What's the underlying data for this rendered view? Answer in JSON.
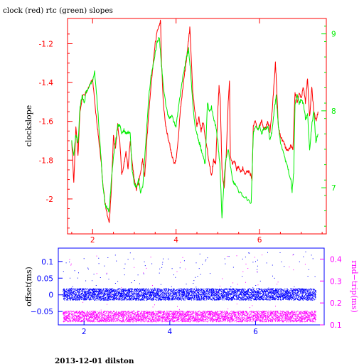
{
  "title": "clock (red) rtc (green) slopes",
  "footer": "2013-12-01 dilston",
  "colors": {
    "clock": "#ff0000",
    "rtc": "#00ee00",
    "offset": "#0000ff",
    "rndtrip": "#ff00ff",
    "axis_top": "#ff0000",
    "axis_bottom": "#0000ff"
  },
  "chart_data": [
    {
      "type": "line",
      "title": "clock (red) rtc (green) slopes",
      "ylabel": "clockslope",
      "y2label": "",
      "xlim": [
        1.4,
        7.6
      ],
      "ylim": [
        -2.18,
        -1.07
      ],
      "y2lim": [
        6.4,
        9.2
      ],
      "xticks": [
        "2",
        "4",
        "6"
      ],
      "yticks": [
        "-1.2",
        "-1.4",
        "-1.6",
        "-1.8",
        "-2"
      ],
      "y2ticks": [
        "9",
        "8",
        "7"
      ],
      "grid": false,
      "series": [
        {
          "name": "clock",
          "axis": "left",
          "points": [
            [
              1.5,
              -1.7
            ],
            [
              1.55,
              -1.92
            ],
            [
              1.6,
              -1.62
            ],
            [
              1.65,
              -1.78
            ],
            [
              1.7,
              -1.55
            ],
            [
              1.75,
              -1.48
            ],
            [
              1.85,
              -1.45
            ],
            [
              1.95,
              -1.4
            ],
            [
              2.0,
              -1.38
            ],
            [
              2.05,
              -1.5
            ],
            [
              2.1,
              -1.6
            ],
            [
              2.15,
              -1.7
            ],
            [
              2.2,
              -1.8
            ],
            [
              2.25,
              -1.93
            ],
            [
              2.3,
              -2.02
            ],
            [
              2.35,
              -2.08
            ],
            [
              2.4,
              -2.12
            ],
            [
              2.45,
              -1.95
            ],
            [
              2.5,
              -1.68
            ],
            [
              2.55,
              -1.74
            ],
            [
              2.6,
              -1.62
            ],
            [
              2.65,
              -1.7
            ],
            [
              2.7,
              -1.88
            ],
            [
              2.75,
              -1.82
            ],
            [
              2.8,
              -1.76
            ],
            [
              2.85,
              -1.84
            ],
            [
              2.9,
              -1.7
            ],
            [
              2.95,
              -1.82
            ],
            [
              3.0,
              -1.9
            ],
            [
              3.05,
              -1.95
            ],
            [
              3.1,
              -1.92
            ],
            [
              3.15,
              -1.86
            ],
            [
              3.2,
              -1.8
            ],
            [
              3.25,
              -1.88
            ],
            [
              3.3,
              -1.7
            ],
            [
              3.35,
              -1.55
            ],
            [
              3.4,
              -1.42
            ],
            [
              3.45,
              -1.3
            ],
            [
              3.5,
              -1.2
            ],
            [
              3.55,
              -1.14
            ],
            [
              3.6,
              -1.1
            ],
            [
              3.63,
              -1.08
            ],
            [
              3.65,
              -1.3
            ],
            [
              3.7,
              -1.52
            ],
            [
              3.75,
              -1.62
            ],
            [
              3.8,
              -1.68
            ],
            [
              3.85,
              -1.72
            ],
            [
              3.9,
              -1.78
            ],
            [
              3.95,
              -1.82
            ],
            [
              4.0,
              -1.8
            ],
            [
              4.05,
              -1.7
            ],
            [
              4.1,
              -1.55
            ],
            [
              4.15,
              -1.45
            ],
            [
              4.2,
              -1.36
            ],
            [
              4.25,
              -1.28
            ],
            [
              4.3,
              -1.18
            ],
            [
              4.33,
              -1.12
            ],
            [
              4.36,
              -1.25
            ],
            [
              4.4,
              -1.45
            ],
            [
              4.45,
              -1.55
            ],
            [
              4.5,
              -1.62
            ],
            [
              4.55,
              -1.58
            ],
            [
              4.6,
              -1.65
            ],
            [
              4.65,
              -1.6
            ],
            [
              4.7,
              -1.68
            ],
            [
              4.75,
              -1.75
            ],
            [
              4.8,
              -1.82
            ],
            [
              4.85,
              -1.88
            ],
            [
              4.9,
              -1.8
            ],
            [
              4.95,
              -1.82
            ],
            [
              5.0,
              -1.55
            ],
            [
              5.03,
              -1.42
            ],
            [
              5.06,
              -1.5
            ],
            [
              5.1,
              -1.85
            ],
            [
              5.15,
              -1.95
            ],
            [
              5.2,
              -1.78
            ],
            [
              5.25,
              -1.5
            ],
            [
              5.28,
              -1.4
            ],
            [
              5.3,
              -1.78
            ],
            [
              5.35,
              -1.82
            ],
            [
              5.4,
              -1.8
            ],
            [
              5.45,
              -1.85
            ],
            [
              5.5,
              -1.83
            ],
            [
              5.55,
              -1.86
            ],
            [
              5.6,
              -1.84
            ],
            [
              5.65,
              -1.87
            ],
            [
              5.7,
              -1.86
            ],
            [
              5.75,
              -1.86
            ],
            [
              5.8,
              -1.88
            ],
            [
              5.82,
              -1.9
            ],
            [
              5.85,
              -1.62
            ],
            [
              5.9,
              -1.6
            ],
            [
              5.95,
              -1.64
            ],
            [
              6.0,
              -1.62
            ],
            [
              6.05,
              -1.6
            ],
            [
              6.1,
              -1.64
            ],
            [
              6.15,
              -1.63
            ],
            [
              6.2,
              -1.6
            ],
            [
              6.25,
              -1.65
            ],
            [
              6.3,
              -1.55
            ],
            [
              6.35,
              -1.4
            ],
            [
              6.38,
              -1.3
            ],
            [
              6.4,
              -1.38
            ],
            [
              6.45,
              -1.62
            ],
            [
              6.5,
              -1.68
            ],
            [
              6.55,
              -1.7
            ],
            [
              6.6,
              -1.72
            ],
            [
              6.65,
              -1.75
            ],
            [
              6.7,
              -1.75
            ],
            [
              6.75,
              -1.72
            ],
            [
              6.8,
              -1.75
            ],
            [
              6.85,
              -1.45
            ],
            [
              6.9,
              -1.5
            ],
            [
              6.95,
              -1.46
            ],
            [
              7.0,
              -1.48
            ],
            [
              7.05,
              -1.42
            ],
            [
              7.1,
              -1.5
            ],
            [
              7.15,
              -1.38
            ],
            [
              7.2,
              -1.58
            ],
            [
              7.25,
              -1.42
            ],
            [
              7.3,
              -1.55
            ],
            [
              7.35,
              -1.6
            ],
            [
              7.4,
              -1.55
            ]
          ]
        },
        {
          "name": "rtc",
          "axis": "right",
          "points": [
            [
              1.5,
              7.6
            ],
            [
              1.55,
              7.42
            ],
            [
              1.6,
              7.7
            ],
            [
              1.65,
              7.58
            ],
            [
              1.7,
              8.05
            ],
            [
              1.75,
              8.2
            ],
            [
              1.8,
              8.1
            ],
            [
              1.85,
              8.25
            ],
            [
              1.9,
              8.3
            ],
            [
              1.95,
              8.35
            ],
            [
              2.0,
              8.4
            ],
            [
              2.05,
              8.5
            ],
            [
              2.1,
              8.2
            ],
            [
              2.15,
              7.8
            ],
            [
              2.2,
              7.4
            ],
            [
              2.25,
              7.0
            ],
            [
              2.3,
              6.8
            ],
            [
              2.35,
              6.72
            ],
            [
              2.4,
              6.7
            ],
            [
              2.45,
              7.1
            ],
            [
              2.5,
              7.4
            ],
            [
              2.55,
              7.6
            ],
            [
              2.6,
              7.8
            ],
            [
              2.65,
              7.82
            ],
            [
              2.7,
              7.7
            ],
            [
              2.75,
              7.75
            ],
            [
              2.8,
              7.7
            ],
            [
              2.85,
              7.72
            ],
            [
              2.9,
              7.7
            ],
            [
              2.95,
              7.2
            ],
            [
              3.0,
              7.05
            ],
            [
              3.05,
              7.0
            ],
            [
              3.1,
              7.1
            ],
            [
              3.15,
              6.95
            ],
            [
              3.2,
              7.0
            ],
            [
              3.25,
              7.4
            ],
            [
              3.3,
              7.8
            ],
            [
              3.35,
              8.2
            ],
            [
              3.4,
              8.45
            ],
            [
              3.45,
              8.6
            ],
            [
              3.5,
              8.75
            ],
            [
              3.55,
              8.9
            ],
            [
              3.6,
              8.95
            ],
            [
              3.65,
              8.6
            ],
            [
              3.7,
              8.3
            ],
            [
              3.75,
              8.1
            ],
            [
              3.8,
              7.95
            ],
            [
              3.85,
              7.9
            ],
            [
              3.9,
              7.95
            ],
            [
              3.95,
              7.85
            ],
            [
              4.0,
              7.8
            ],
            [
              4.05,
              8.0
            ],
            [
              4.1,
              8.2
            ],
            [
              4.15,
              8.4
            ],
            [
              4.2,
              8.55
            ],
            [
              4.25,
              8.7
            ],
            [
              4.3,
              8.8
            ],
            [
              4.35,
              8.5
            ],
            [
              4.4,
              8.1
            ],
            [
              4.45,
              7.8
            ],
            [
              4.5,
              7.7
            ],
            [
              4.55,
              7.6
            ],
            [
              4.6,
              7.5
            ],
            [
              4.65,
              7.4
            ],
            [
              4.7,
              7.3
            ],
            [
              4.75,
              8.1
            ],
            [
              4.8,
              8.0
            ],
            [
              4.85,
              8.05
            ],
            [
              4.9,
              7.9
            ],
            [
              4.95,
              7.8
            ],
            [
              5.0,
              7.6
            ],
            [
              5.05,
              7.3
            ],
            [
              5.1,
              6.6
            ],
            [
              5.15,
              7.1
            ],
            [
              5.2,
              7.4
            ],
            [
              5.25,
              7.5
            ],
            [
              5.3,
              7.3
            ],
            [
              5.35,
              7.1
            ],
            [
              5.4,
              7.05
            ],
            [
              5.5,
              6.95
            ],
            [
              5.6,
              6.9
            ],
            [
              5.7,
              6.85
            ],
            [
              5.8,
              6.8
            ],
            [
              5.85,
              7.7
            ],
            [
              5.9,
              7.8
            ],
            [
              5.95,
              7.75
            ],
            [
              6.0,
              7.8
            ],
            [
              6.05,
              7.7
            ],
            [
              6.1,
              7.78
            ],
            [
              6.15,
              7.75
            ],
            [
              6.2,
              7.8
            ],
            [
              6.25,
              7.6
            ],
            [
              6.3,
              7.75
            ],
            [
              6.35,
              8.0
            ],
            [
              6.4,
              8.2
            ],
            [
              6.45,
              7.8
            ],
            [
              6.5,
              7.6
            ],
            [
              6.55,
              7.5
            ],
            [
              6.6,
              7.4
            ],
            [
              6.65,
              7.3
            ],
            [
              6.7,
              7.2
            ],
            [
              6.75,
              7.1
            ],
            [
              6.78,
              6.95
            ],
            [
              6.82,
              7.2
            ],
            [
              6.85,
              8.1
            ],
            [
              6.9,
              8.2
            ],
            [
              6.95,
              8.1
            ],
            [
              7.0,
              8.15
            ],
            [
              7.05,
              8.1
            ],
            [
              7.1,
              7.9
            ],
            [
              7.15,
              7.95
            ],
            [
              7.2,
              7.5
            ],
            [
              7.25,
              7.8
            ],
            [
              7.3,
              8.0
            ],
            [
              7.35,
              7.6
            ],
            [
              7.4,
              7.7
            ]
          ]
        }
      ]
    },
    {
      "type": "scatter",
      "ylabel": "offset(ms)",
      "y2label": "rnd−trip(ms)",
      "xlim": [
        1.4,
        7.6
      ],
      "ylim": [
        -0.09,
        0.14
      ],
      "y2lim": [
        0.1,
        0.45
      ],
      "xticks": [
        "2",
        "4",
        "6"
      ],
      "yticks": [
        "0.1",
        "0.05",
        "0",
        "−0.05"
      ],
      "y2ticks": [
        "0.4",
        "0.3",
        "0.2",
        "0.1"
      ],
      "grid": false,
      "series": [
        {
          "name": "offset",
          "axis": "left",
          "x_range": [
            1.5,
            7.4
          ],
          "y_band": [
            -0.015,
            0.02
          ],
          "y_outlier_max": 0.13
        },
        {
          "name": "rnd-trip",
          "axis": "right",
          "x_range": [
            1.5,
            7.4
          ],
          "y_band": [
            0.115,
            0.165
          ],
          "y_outlier_max": 0.43
        }
      ]
    }
  ]
}
